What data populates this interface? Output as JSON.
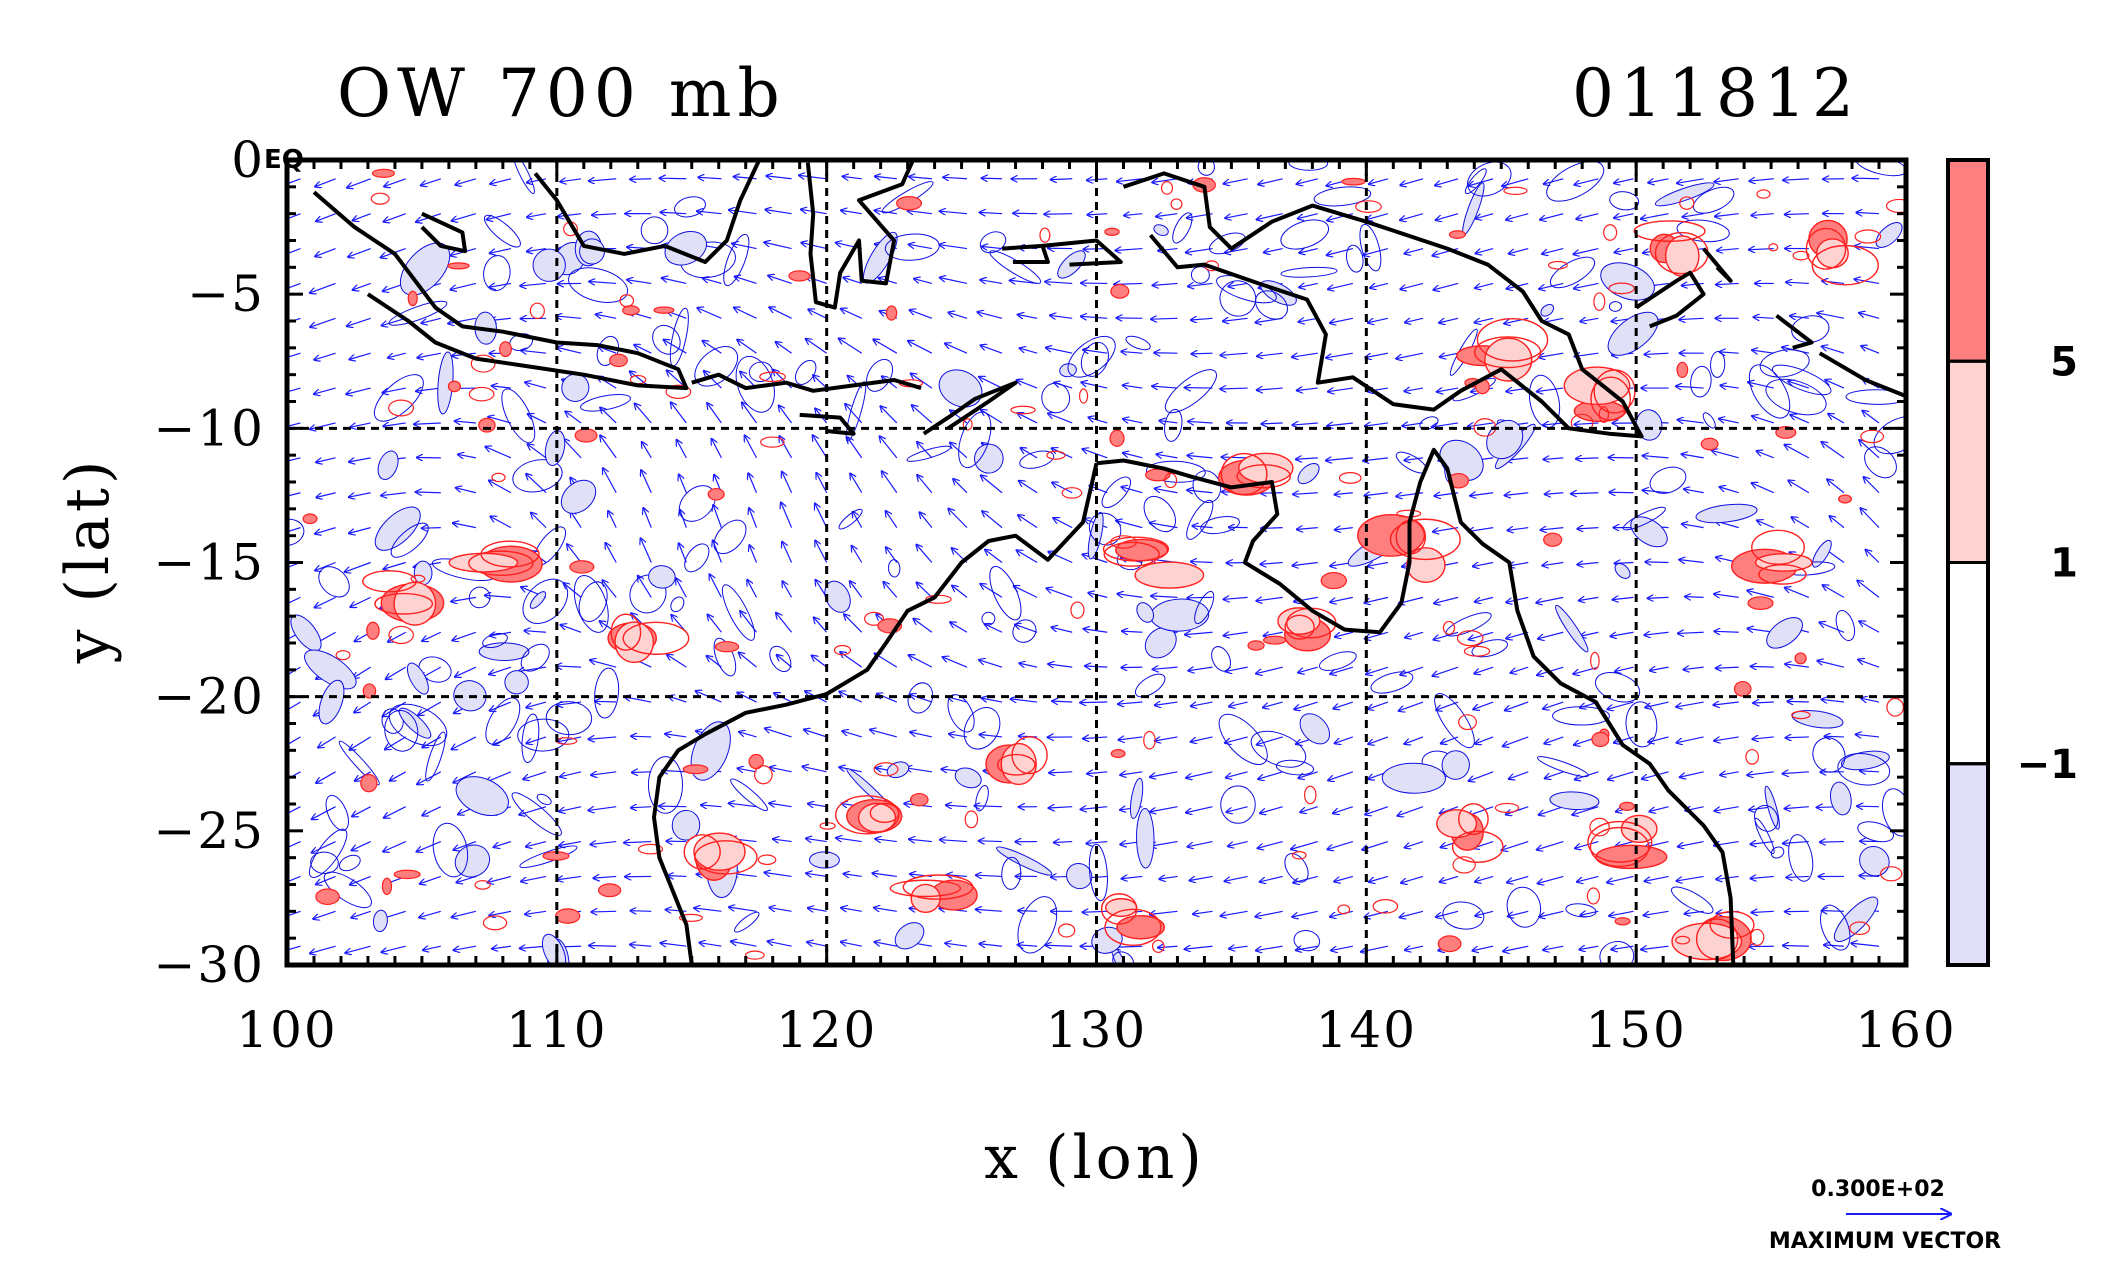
{
  "chart_data": {
    "type": "heatmap",
    "title": "OW 700 mb",
    "date_label": "011812",
    "corner_label": "EQ",
    "xlabel": "x (lon)",
    "ylabel": "y (lat)",
    "xlim": [
      100,
      160
    ],
    "ylim": [
      -30,
      0
    ],
    "xticks": [
      100,
      110,
      120,
      130,
      140,
      150,
      160
    ],
    "yticks": [
      0,
      -5,
      -10,
      -15,
      -20,
      -25,
      -30
    ],
    "grid_lon": [
      110,
      120,
      130,
      140,
      150
    ],
    "grid_lat": [
      -10,
      -20
    ],
    "colorbar": {
      "levels": [
        "5",
        "1",
        "−1"
      ],
      "level_values": [
        5,
        1,
        -1
      ],
      "colors": [
        "#ff7f7f",
        "#ffd2d2",
        "#ffffff",
        "#e0e0f8"
      ]
    },
    "vector_legend": {
      "value": "0.300E+02",
      "caption": "MAXIMUM VECTOR"
    },
    "colors": {
      "positive_contour": "#ff2020",
      "negative_contour": "#1010e0",
      "vectors": "#1a1aff",
      "coast": "#000000"
    },
    "coastlines": [
      [
        [
          101.0,
          -1.2
        ],
        [
          102.5,
          -2.5
        ],
        [
          104.0,
          -3.5
        ],
        [
          105.5,
          -5.5
        ],
        [
          106.5,
          -6.2
        ],
        [
          108.0,
          -6.4
        ],
        [
          110.0,
          -6.8
        ],
        [
          111.5,
          -6.9
        ],
        [
          113.0,
          -7.2
        ],
        [
          114.5,
          -7.8
        ],
        [
          114.8,
          -8.5
        ],
        [
          113.0,
          -8.4
        ],
        [
          111.0,
          -8.0
        ],
        [
          109.0,
          -7.7
        ],
        [
          107.0,
          -7.4
        ],
        [
          105.5,
          -6.8
        ],
        [
          104.5,
          -6.0
        ],
        [
          103.0,
          -5.0
        ]
      ],
      [
        [
          105.0,
          -2.0
        ],
        [
          106.5,
          -2.7
        ],
        [
          106.6,
          -3.4
        ],
        [
          105.7,
          -3.2
        ],
        [
          105.0,
          -2.5
        ]
      ],
      [
        [
          109.2,
          -0.5
        ],
        [
          110.0,
          -1.5
        ],
        [
          111.0,
          -3.2
        ],
        [
          112.5,
          -3.5
        ],
        [
          114.0,
          -3.2
        ],
        [
          115.5,
          -3.8
        ],
        [
          116.3,
          -3.0
        ],
        [
          116.8,
          -1.5
        ],
        [
          117.5,
          0.0
        ]
      ],
      [
        [
          119.3,
          -0.1
        ],
        [
          119.5,
          -2.0
        ],
        [
          119.4,
          -3.5
        ],
        [
          119.6,
          -5.3
        ],
        [
          120.3,
          -5.5
        ],
        [
          120.5,
          -4.2
        ],
        [
          121.2,
          -3.0
        ],
        [
          121.3,
          -4.5
        ],
        [
          122.2,
          -4.6
        ],
        [
          122.5,
          -3.0
        ],
        [
          121.2,
          -1.5
        ],
        [
          122.8,
          -0.9
        ],
        [
          123.2,
          0.0
        ]
      ],
      [
        [
          115.0,
          -8.3
        ],
        [
          116.0,
          -8.0
        ],
        [
          117.0,
          -8.5
        ],
        [
          118.5,
          -8.3
        ],
        [
          119.5,
          -8.6
        ],
        [
          121.0,
          -8.4
        ],
        [
          122.5,
          -8.2
        ],
        [
          123.5,
          -8.5
        ]
      ],
      [
        [
          119.0,
          -9.5
        ],
        [
          120.5,
          -9.6
        ],
        [
          121.0,
          -10.2
        ],
        [
          120.0,
          -10.1
        ]
      ],
      [
        [
          123.6,
          -10.2
        ],
        [
          124.5,
          -9.6
        ],
        [
          125.5,
          -8.9
        ],
        [
          127.0,
          -8.3
        ],
        [
          126.0,
          -9.0
        ],
        [
          124.5,
          -10.0
        ]
      ],
      [
        [
          126.5,
          -3.3
        ],
        [
          128.0,
          -3.2
        ],
        [
          128.2,
          -3.8
        ],
        [
          126.9,
          -3.8
        ]
      ],
      [
        [
          128.0,
          -3.2
        ],
        [
          130.0,
          -3.0
        ],
        [
          130.9,
          -3.8
        ],
        [
          129.0,
          -3.9
        ]
      ],
      [
        [
          131.0,
          -1.0
        ],
        [
          132.5,
          -0.5
        ],
        [
          134.0,
          -1.0
        ],
        [
          134.2,
          -2.5
        ],
        [
          135.0,
          -3.3
        ],
        [
          136.5,
          -2.3
        ],
        [
          138.0,
          -1.7
        ],
        [
          140.0,
          -2.3
        ],
        [
          141.5,
          -2.8
        ],
        [
          143.0,
          -3.3
        ],
        [
          144.5,
          -3.9
        ],
        [
          145.8,
          -4.9
        ],
        [
          146.5,
          -6.0
        ],
        [
          147.5,
          -6.5
        ],
        [
          148.0,
          -7.8
        ],
        [
          149.5,
          -9.0
        ],
        [
          150.2,
          -10.3
        ],
        [
          149.0,
          -10.2
        ],
        [
          147.5,
          -10.0
        ],
        [
          146.5,
          -9.0
        ],
        [
          145.0,
          -7.8
        ],
        [
          143.5,
          -8.6
        ],
        [
          142.5,
          -9.3
        ],
        [
          141.0,
          -9.1
        ],
        [
          139.5,
          -8.1
        ],
        [
          138.2,
          -8.3
        ],
        [
          138.5,
          -6.5
        ],
        [
          137.8,
          -5.2
        ],
        [
          136.0,
          -4.6
        ],
        [
          134.0,
          -3.9
        ],
        [
          133.0,
          -4.0
        ],
        [
          132.0,
          -2.8
        ]
      ],
      [
        [
          150.0,
          -5.5
        ],
        [
          151.5,
          -4.5
        ],
        [
          152.0,
          -4.2
        ],
        [
          152.5,
          -5.0
        ],
        [
          151.5,
          -5.8
        ],
        [
          150.5,
          -6.2
        ]
      ],
      [
        [
          152.5,
          -3.3
        ],
        [
          153.5,
          -4.5
        ],
        [
          153.0,
          -4.0
        ]
      ],
      [
        [
          155.2,
          -5.8
        ],
        [
          156.5,
          -6.8
        ],
        [
          155.8,
          -7.0
        ]
      ],
      [
        [
          156.8,
          -7.2
        ],
        [
          158.5,
          -8.2
        ],
        [
          160.0,
          -8.8
        ]
      ],
      [
        [
          130.0,
          -11.3
        ],
        [
          131.0,
          -11.2
        ],
        [
          132.5,
          -11.5
        ],
        [
          133.5,
          -11.8
        ],
        [
          135.0,
          -12.2
        ],
        [
          136.5,
          -12.0
        ],
        [
          136.7,
          -13.2
        ],
        [
          135.8,
          -14.2
        ],
        [
          135.5,
          -15.0
        ],
        [
          136.8,
          -15.8
        ],
        [
          138.0,
          -16.8
        ],
        [
          139.2,
          -17.5
        ],
        [
          140.5,
          -17.6
        ],
        [
          141.3,
          -16.5
        ],
        [
          141.6,
          -15.0
        ],
        [
          141.6,
          -13.5
        ],
        [
          142.0,
          -12.0
        ],
        [
          142.5,
          -10.8
        ],
        [
          143.0,
          -11.5
        ],
        [
          143.5,
          -13.5
        ],
        [
          144.3,
          -14.3
        ],
        [
          145.3,
          -15.0
        ],
        [
          145.6,
          -16.8
        ],
        [
          146.2,
          -18.5
        ],
        [
          147.2,
          -19.5
        ],
        [
          148.5,
          -20.2
        ],
        [
          149.5,
          -21.8
        ],
        [
          150.5,
          -22.5
        ],
        [
          151.2,
          -23.5
        ],
        [
          152.5,
          -24.8
        ],
        [
          153.2,
          -25.8
        ],
        [
          153.5,
          -27.5
        ],
        [
          153.6,
          -30.0
        ]
      ],
      [
        [
          130.0,
          -11.3
        ],
        [
          129.5,
          -13.5
        ],
        [
          128.2,
          -14.9
        ],
        [
          127.0,
          -14.0
        ],
        [
          126.0,
          -14.2
        ],
        [
          125.0,
          -15.0
        ],
        [
          124.0,
          -16.3
        ],
        [
          123.0,
          -16.8
        ],
        [
          122.2,
          -18.0
        ],
        [
          121.5,
          -19.0
        ],
        [
          120.0,
          -19.9
        ],
        [
          118.5,
          -20.3
        ],
        [
          117.0,
          -20.6
        ],
        [
          115.5,
          -21.4
        ],
        [
          114.5,
          -22.0
        ],
        [
          113.8,
          -23.0
        ],
        [
          113.6,
          -24.5
        ],
        [
          113.8,
          -26.0
        ],
        [
          114.2,
          -27.0
        ],
        [
          114.8,
          -28.5
        ],
        [
          115.0,
          -30.0
        ]
      ]
    ]
  }
}
